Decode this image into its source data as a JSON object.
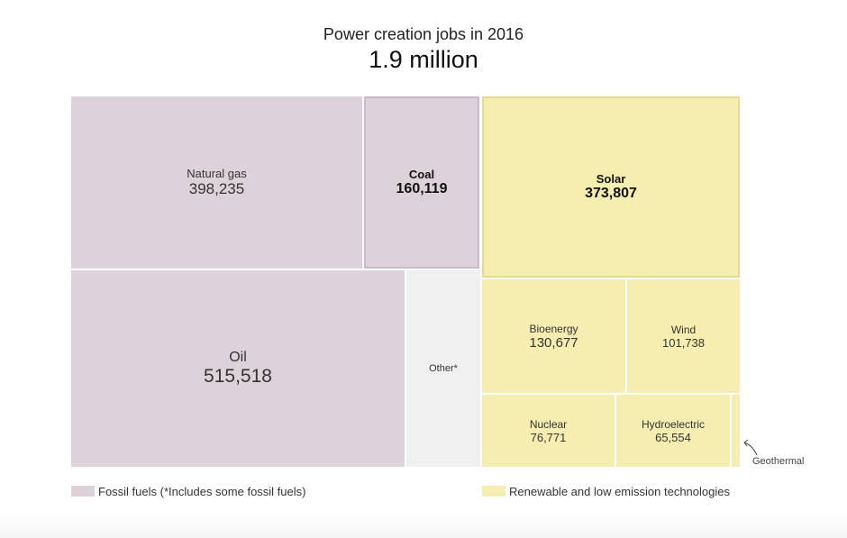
{
  "chart_data": {
    "type": "treemap",
    "title": "Power creation jobs in 2016",
    "subtitle": "1.9 million",
    "groups": [
      {
        "name": "Fossil fuels (*Includes some fossil fuels)",
        "color": "#ddd2da"
      },
      {
        "name": "Renewable and low emission technologies",
        "color": "#f6edb0"
      }
    ],
    "items": [
      {
        "name": "Natural gas",
        "value": 398235,
        "label": "398,235",
        "group": "fossil"
      },
      {
        "name": "Coal",
        "value": 160119,
        "label": "160,119",
        "group": "fossil",
        "emphasis": true
      },
      {
        "name": "Oil",
        "value": 515518,
        "label": "515,518",
        "group": "fossil"
      },
      {
        "name": "Other*",
        "value": null,
        "label": "",
        "group": "other"
      },
      {
        "name": "Solar",
        "value": 373807,
        "label": "373,807",
        "group": "renewable",
        "emphasis": true
      },
      {
        "name": "Bioenergy",
        "value": 130677,
        "label": "130,677",
        "group": "renewable"
      },
      {
        "name": "Wind",
        "value": 101738,
        "label": "101,738",
        "group": "renewable"
      },
      {
        "name": "Nuclear",
        "value": 76771,
        "label": "76,771",
        "group": "renewable"
      },
      {
        "name": "Hydroelectric",
        "value": 65554,
        "label": "65,554",
        "group": "renewable"
      },
      {
        "name": "Geothermal",
        "value": null,
        "label": "",
        "group": "renewable"
      }
    ],
    "legend": [
      "Fossil fuels (*Includes some fossil fuels)",
      "Renewable and low emission technologies"
    ],
    "annotation": "Geothermal"
  }
}
